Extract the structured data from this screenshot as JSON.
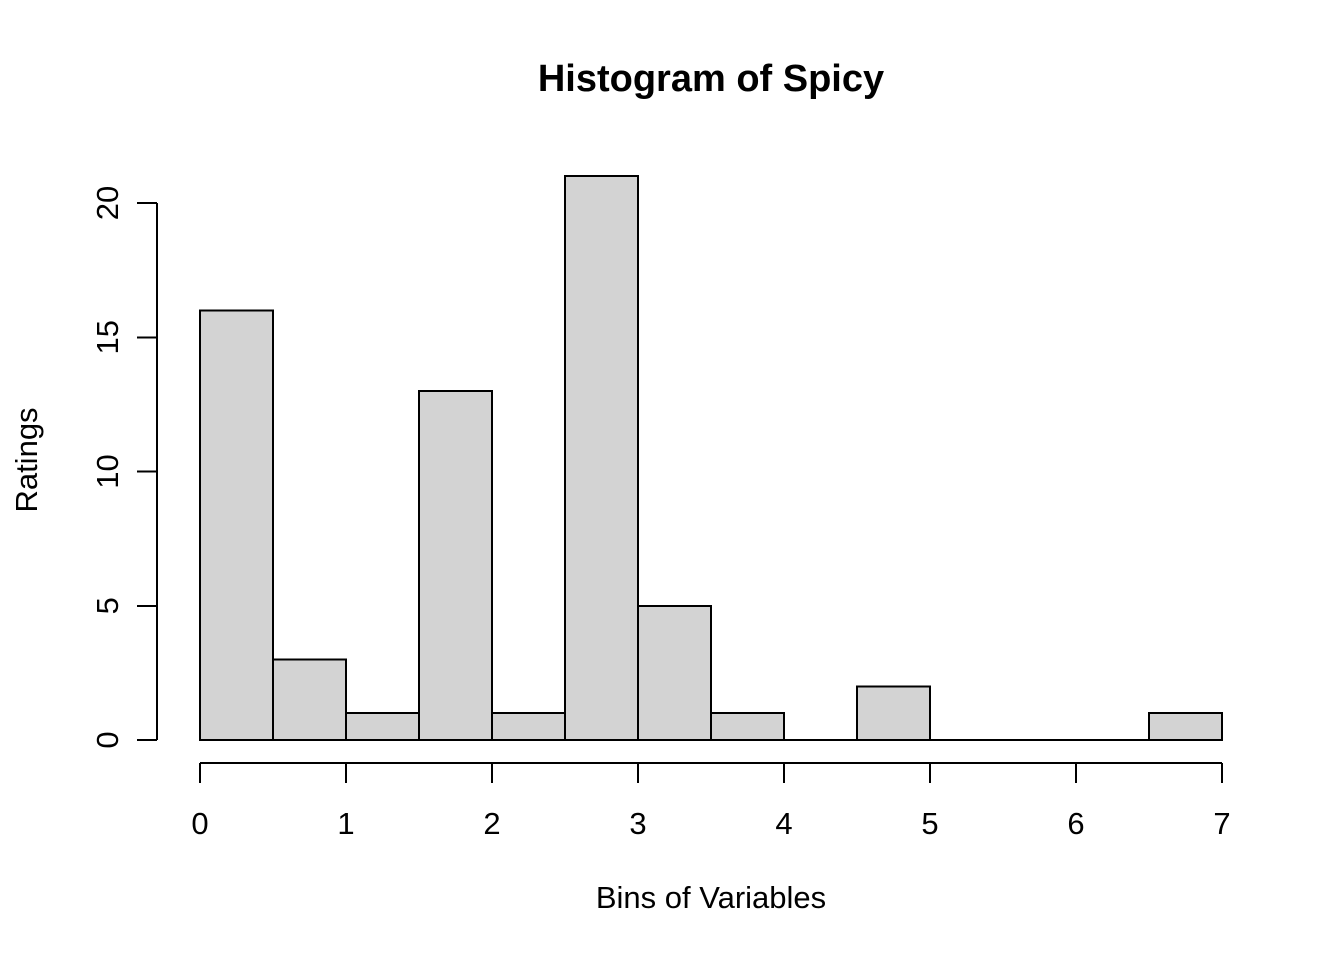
{
  "page": {
    "background_color": "#ffffff"
  },
  "chart_data": {
    "type": "bar",
    "subtype": "histogram",
    "title": "Histogram of Spicy",
    "xlabel": "Bins of Variables",
    "ylabel": "Ratings",
    "bin_breaks": [
      0,
      0.5,
      1,
      1.5,
      2,
      2.5,
      3,
      3.5,
      4,
      4.5,
      5,
      5.5,
      6,
      6.5,
      7
    ],
    "counts": [
      16,
      3,
      1,
      13,
      1,
      21,
      5,
      1,
      0,
      2,
      0,
      0,
      0,
      1
    ],
    "x_ticks": [
      0,
      1,
      2,
      3,
      4,
      5,
      6,
      7
    ],
    "y_ticks": [
      0,
      5,
      10,
      15,
      20
    ],
    "xlim": [
      0,
      7
    ],
    "ylim": [
      0,
      20
    ],
    "grid": false,
    "legend": null,
    "bar_fill_color": "#D3D3D3",
    "bar_stroke_color": "#000000",
    "axis_color": "#000000",
    "text_color": "#000000"
  }
}
